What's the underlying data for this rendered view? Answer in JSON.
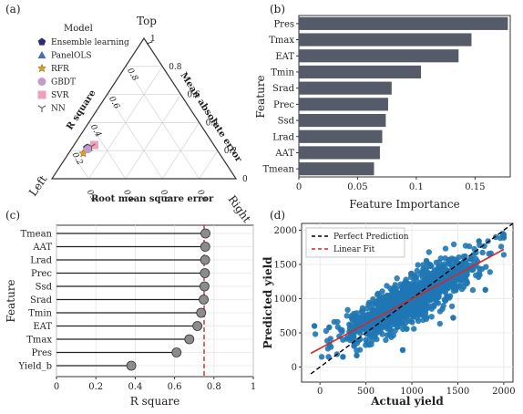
{
  "panel_labels": [
    "(a)",
    "(b)",
    "(c)",
    "(d)"
  ],
  "colors": {
    "bar": "#555b68",
    "lollipop_dot": "#8c8c8c",
    "lollipop_stem": "#222222",
    "refline": "#d62728",
    "scatter": "#1f77b4",
    "perfect_line": "#000000",
    "fit_line": "#d62728",
    "ensemble": "#2b2d7a",
    "panelols": "#4a6fa5",
    "rfr": "#e0a020",
    "gbdt": "#c49ad0",
    "svr": "#f0a0b8",
    "nn": "#666666"
  },
  "chart_data": [
    {
      "id": "a",
      "type": "scatter",
      "subtype": "ternary",
      "corner_labels": {
        "top": "Top",
        "left": "Left",
        "right": "Right"
      },
      "axis_labels": {
        "left_edge": "R square",
        "right_edge": "Mean absolute error",
        "bottom_edge": "Root mean square error"
      },
      "ticks": {
        "top_axis": [
          "0",
          "0.2",
          "0.4",
          "0.6",
          "0.8",
          "1"
        ],
        "right_axis": [
          "0",
          "0.2",
          "0.4",
          "0.6",
          "0.8",
          "1"
        ],
        "bottom_axis": [
          "0",
          "0.2",
          "0.4",
          "0.6",
          "0.8",
          "1"
        ]
      },
      "legend_title": "Model",
      "legend_placement": "top-left",
      "series": [
        {
          "name": "Ensemble learning",
          "marker": "pentagon",
          "points": [
            {
              "top": 0.22,
              "left": 0.7,
              "right": 0.08
            }
          ]
        },
        {
          "name": "PanelOLS",
          "marker": "triangle",
          "points": [
            {
              "top": 0.22,
              "left": 0.69,
              "right": 0.09
            }
          ]
        },
        {
          "name": "RFR",
          "marker": "star",
          "points": [
            {
              "top": 0.18,
              "left": 0.74,
              "right": 0.08
            }
          ]
        },
        {
          "name": "GBDT",
          "marker": "circle",
          "points": [
            {
              "top": 0.21,
              "left": 0.7,
              "right": 0.09
            }
          ]
        },
        {
          "name": "SVR",
          "marker": "square",
          "points": [
            {
              "top": 0.24,
              "left": 0.65,
              "right": 0.11
            }
          ]
        },
        {
          "name": "NN",
          "marker": "tri_down",
          "points": [
            {
              "top": 0.23,
              "left": 0.67,
              "right": 0.1
            }
          ]
        }
      ]
    },
    {
      "id": "b",
      "type": "bar",
      "orientation": "horizontal",
      "categories": [
        "Pres",
        "Tmax",
        "EAT",
        "Tmin",
        "Srad",
        "Prec",
        "Ssd",
        "Lrad",
        "AAT",
        "Tmean"
      ],
      "values": [
        0.178,
        0.147,
        0.136,
        0.104,
        0.079,
        0.076,
        0.074,
        0.071,
        0.069,
        0.064
      ],
      "xlabel": "Feature Importance",
      "ylabel": "Feature",
      "xlim": [
        0,
        0.18
      ],
      "xticks": [
        "0",
        "0.05",
        "0.1",
        "0.15"
      ],
      "grid": false
    },
    {
      "id": "c",
      "type": "scatter",
      "subtype": "lollipop",
      "categories": [
        "Tmean",
        "AAT",
        "Lrad",
        "Prec",
        "Ssd",
        "Srad",
        "Tmin",
        "EAT",
        "Tmax",
        "Pres",
        "Yield_b"
      ],
      "values": [
        0.757,
        0.756,
        0.755,
        0.754,
        0.752,
        0.748,
        0.735,
        0.716,
        0.675,
        0.61,
        0.38
      ],
      "reference_line": 0.75,
      "xlabel": "R  square",
      "ylabel": "Feature",
      "xlim": [
        0,
        1
      ],
      "xticks": [
        "0",
        "0.2",
        "0.4",
        "0.6",
        "0.8",
        "1"
      ],
      "grid": true
    },
    {
      "id": "d",
      "type": "scatter",
      "xlabel": "Actual yield",
      "ylabel": "Predicted yield",
      "xlim": [
        -200,
        2100
      ],
      "ylim": [
        -220,
        2100
      ],
      "xticks": [
        "0",
        "500",
        "1000",
        "1500",
        "2000"
      ],
      "yticks": [
        "0",
        "500",
        "1000",
        "1500",
        "2000"
      ],
      "grid": true,
      "legend": [
        "Perfect Prediction",
        "Linear Fit"
      ],
      "legend_placement": "top-left",
      "fit_line": {
        "x": [
          -100,
          2000
        ],
        "y": [
          200,
          1720
        ]
      },
      "perfect_line": {
        "x": [
          -100,
          2100
        ],
        "y": [
          -100,
          2100
        ]
      },
      "points": {
        "n": 1400,
        "center": 1000,
        "spread_x": 330,
        "fit_noise": 190,
        "outliers": [
          [
            -60,
            600
          ],
          [
            100,
            580
          ],
          [
            250,
            150
          ],
          [
            400,
            170
          ],
          [
            1800,
            1130
          ],
          [
            1990,
            1950
          ],
          [
            1730,
            1840
          ],
          [
            1450,
            720
          ],
          [
            900,
            250
          ]
        ]
      }
    }
  ]
}
